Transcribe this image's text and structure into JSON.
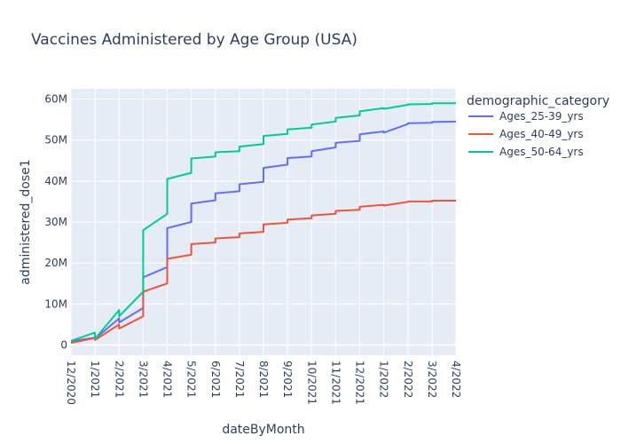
{
  "chart_data": {
    "type": "line",
    "title": "Vaccines Administered by Age Group (USA)",
    "xlabel": "dateByMonth",
    "ylabel": "administered_dose1",
    "x_ticks": [
      "12/2020",
      "1/2021",
      "2/2021",
      "3/2021",
      "4/2021",
      "5/2021",
      "6/2021",
      "7/2021",
      "8/2021",
      "9/2021",
      "10/2021",
      "11/2021",
      "12/2021",
      "1/2022",
      "2/2022",
      "3/2022",
      "4/2022"
    ],
    "y_ticks": [
      "0",
      "10M",
      "20M",
      "30M",
      "40M",
      "50M",
      "60M"
    ],
    "y_tick_values": [
      0,
      10,
      20,
      30,
      40,
      50,
      60
    ],
    "ylim": [
      -2.5,
      62.5
    ],
    "y_unit": "millions",
    "legend_title": "demographic_category",
    "legend_position": "right",
    "grid": true,
    "series": [
      {
        "name": "Ages_25-39_yrs",
        "color": "#636efa",
        "points": [
          [
            0,
            0.9
          ],
          [
            1,
            1.8
          ],
          [
            1,
            1.5
          ],
          [
            2,
            6.5
          ],
          [
            2,
            5.5
          ],
          [
            3,
            9.0
          ],
          [
            3,
            16.5
          ],
          [
            4,
            19.0
          ],
          [
            4,
            28.5
          ],
          [
            5,
            30.0
          ],
          [
            5,
            34.5
          ],
          [
            6,
            35.3
          ],
          [
            6,
            37.0
          ],
          [
            7,
            37.5
          ],
          [
            7,
            39.2
          ],
          [
            8,
            39.8
          ],
          [
            8,
            43.2
          ],
          [
            9,
            44.0
          ],
          [
            9,
            45.6
          ],
          [
            10,
            46.0
          ],
          [
            10,
            47.3
          ],
          [
            11,
            48.2
          ],
          [
            11,
            49.3
          ],
          [
            12,
            49.8
          ],
          [
            12,
            51.4
          ],
          [
            13,
            52.1
          ],
          [
            13,
            51.8
          ],
          [
            14,
            53.9
          ],
          [
            14,
            54.1
          ],
          [
            15,
            54.2
          ],
          [
            15,
            54.4
          ],
          [
            16,
            54.5
          ]
        ]
      },
      {
        "name": "Ages_40-49_yrs",
        "color": "#ef553b",
        "points": [
          [
            0,
            0.5
          ],
          [
            1,
            1.7
          ],
          [
            1,
            1.2
          ],
          [
            2,
            5.0
          ],
          [
            2,
            4.0
          ],
          [
            3,
            7.0
          ],
          [
            3,
            13.0
          ],
          [
            4,
            15.0
          ],
          [
            4,
            21.0
          ],
          [
            5,
            22.0
          ],
          [
            5,
            24.6
          ],
          [
            6,
            25.0
          ],
          [
            6,
            26.0
          ],
          [
            7,
            26.3
          ],
          [
            7,
            27.2
          ],
          [
            8,
            27.6
          ],
          [
            8,
            29.4
          ],
          [
            9,
            29.8
          ],
          [
            9,
            30.6
          ],
          [
            10,
            30.9
          ],
          [
            10,
            31.6
          ],
          [
            11,
            32.0
          ],
          [
            11,
            32.7
          ],
          [
            12,
            33.0
          ],
          [
            12,
            33.7
          ],
          [
            13,
            34.2
          ],
          [
            13,
            34.0
          ],
          [
            14,
            34.9
          ],
          [
            14,
            35.0
          ],
          [
            15,
            35.0
          ],
          [
            15,
            35.2
          ],
          [
            16,
            35.2
          ]
        ]
      },
      {
        "name": "Ages_50-64_yrs",
        "color": "#00cc96",
        "points": [
          [
            0,
            1.0
          ],
          [
            1,
            3.0
          ],
          [
            1,
            1.5
          ],
          [
            2,
            8.5
          ],
          [
            2,
            7.0
          ],
          [
            3,
            13.0
          ],
          [
            3,
            28.0
          ],
          [
            4,
            32.0
          ],
          [
            4,
            40.5
          ],
          [
            5,
            42.0
          ],
          [
            5,
            45.5
          ],
          [
            6,
            46.0
          ],
          [
            6,
            47.0
          ],
          [
            7,
            47.3
          ],
          [
            7,
            48.4
          ],
          [
            8,
            49.0
          ],
          [
            8,
            51.0
          ],
          [
            9,
            51.5
          ],
          [
            9,
            52.6
          ],
          [
            10,
            53.0
          ],
          [
            10,
            53.8
          ],
          [
            11,
            54.5
          ],
          [
            11,
            55.4
          ],
          [
            12,
            56.0
          ],
          [
            12,
            57.0
          ],
          [
            13,
            57.8
          ],
          [
            13,
            57.6
          ],
          [
            14,
            58.6
          ],
          [
            14,
            58.7
          ],
          [
            15,
            58.8
          ],
          [
            15,
            59.0
          ],
          [
            16,
            59.0
          ]
        ]
      }
    ]
  }
}
